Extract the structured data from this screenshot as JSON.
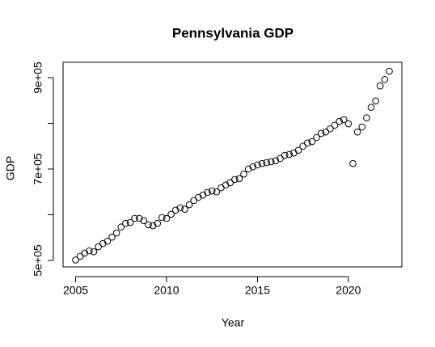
{
  "chart_data": {
    "type": "scatter",
    "title": "Pennsylvania GDP",
    "x_label": "Year",
    "y_label": "GDP",
    "x": [
      2005,
      2005.25,
      2005.5,
      2005.75,
      2006,
      2006.25,
      2006.5,
      2006.75,
      2007,
      2007.25,
      2007.5,
      2007.75,
      2008,
      2008.25,
      2008.5,
      2008.75,
      2009,
      2009.25,
      2009.5,
      2009.75,
      2010,
      2010.25,
      2010.5,
      2010.75,
      2011,
      2011.25,
      2011.5,
      2011.75,
      2012,
      2012.25,
      2012.5,
      2012.75,
      2013,
      2013.25,
      2013.5,
      2013.75,
      2014,
      2014.25,
      2014.5,
      2014.75,
      2015,
      2015.25,
      2015.5,
      2015.75,
      2016,
      2016.25,
      2016.5,
      2016.75,
      2017,
      2017.25,
      2017.5,
      2017.75,
      2018,
      2018.25,
      2018.5,
      2018.75,
      2019,
      2019.25,
      2019.5,
      2019.75,
      2020,
      2020.25,
      2020.5,
      2020.75,
      2021,
      2021.25,
      2021.5,
      2021.75,
      2022,
      2022.25
    ],
    "values": [
      501000,
      509000,
      516000,
      521000,
      519000,
      530000,
      537000,
      542000,
      551000,
      560000,
      573000,
      581000,
      583000,
      592000,
      592000,
      587000,
      578000,
      576000,
      581000,
      594000,
      592000,
      601000,
      610000,
      615000,
      612000,
      622000,
      631000,
      638000,
      643000,
      649000,
      652000,
      650000,
      659000,
      665000,
      670000,
      677000,
      679000,
      689000,
      700000,
      705000,
      709000,
      712000,
      714000,
      716000,
      718000,
      723000,
      730000,
      732000,
      735000,
      741000,
      750000,
      757000,
      760000,
      769000,
      778000,
      781000,
      788000,
      796000,
      804000,
      808000,
      799000,
      712000,
      781000,
      792000,
      812000,
      835000,
      849000,
      882000,
      896000,
      914000
    ],
    "color": "#000000",
    "xlim": [
      2004.31,
      2022.94
    ],
    "xticks": [
      2005,
      2010,
      2015,
      2020
    ],
    "ylim": [
      485800,
      933600
    ],
    "yticks": [
      {
        "value": 500000,
        "label": "5e+05"
      },
      {
        "value": 600000,
        "label": null
      },
      {
        "value": 700000,
        "label": "7e+05"
      },
      {
        "value": 800000,
        "label": null
      },
      {
        "value": 900000,
        "label": "9e+05"
      }
    ]
  }
}
